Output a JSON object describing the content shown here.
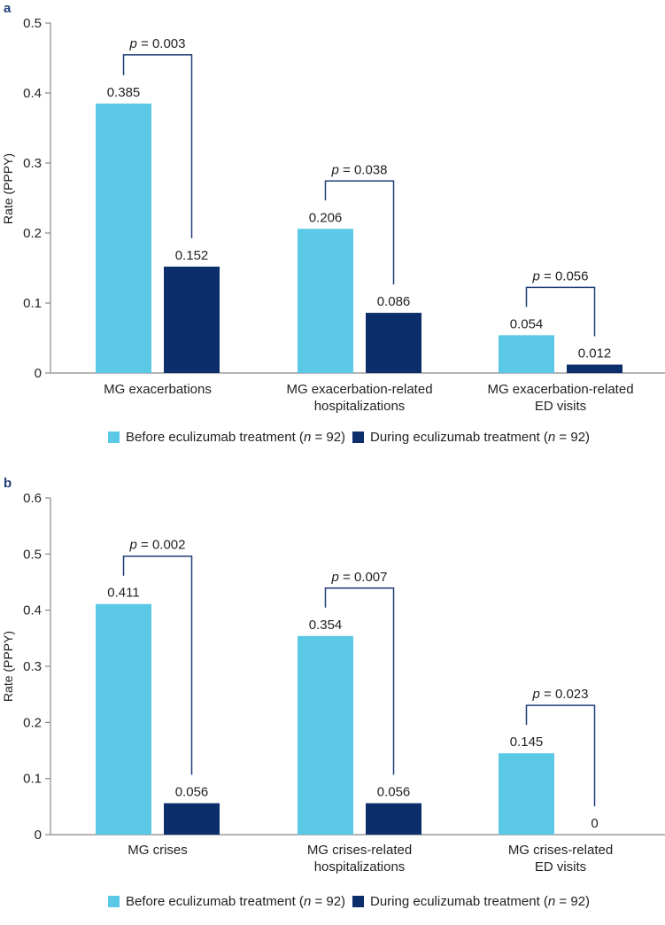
{
  "colors": {
    "before": "#5bc8e6",
    "during": "#0c2f6b",
    "axis": "#888888",
    "text": "#222222",
    "bracket": "#1f3d7a",
    "panel_label": "#1f3d7a"
  },
  "chart_data": [
    {
      "panel_label": "a",
      "type": "bar",
      "ylabel": "Rate (PPPY)",
      "ylim": [
        0,
        0.5
      ],
      "yticks": [
        "0",
        "0.1",
        "0.2",
        "0.3",
        "0.4",
        "0.5"
      ],
      "ytick_values": [
        0,
        0.1,
        0.2,
        0.3,
        0.4,
        0.5
      ],
      "categories": [
        [
          "MG exacerbations"
        ],
        [
          "MG exacerbation-related",
          "hospitalizations"
        ],
        [
          "MG exacerbation-related",
          "ED visits"
        ]
      ],
      "series": [
        {
          "name": "Before eculizumab treatment",
          "n_label": "n",
          "n_value": "= 92)",
          "values": [
            0.385,
            0.206,
            0.054
          ],
          "labels": [
            "0.385",
            "0.206",
            "0.054"
          ]
        },
        {
          "name": "During eculizumab treatment",
          "n_label": "n",
          "n_value": "= 92)",
          "values": [
            0.152,
            0.086,
            0.012
          ],
          "labels": [
            "0.152",
            "0.086",
            "0.012"
          ]
        }
      ],
      "pvalues": [
        "= 0.003",
        "= 0.038",
        "= 0.056"
      ],
      "pvalue_symbol": "p",
      "legend_position": "bottom"
    },
    {
      "panel_label": "b",
      "type": "bar",
      "ylabel": "Rate (PPPY)",
      "ylim": [
        0,
        0.6
      ],
      "yticks": [
        "0",
        "0.1",
        "0.2",
        "0.3",
        "0.4",
        "0.5",
        "0.6"
      ],
      "ytick_values": [
        0,
        0.1,
        0.2,
        0.3,
        0.4,
        0.5,
        0.6
      ],
      "categories": [
        [
          "MG crises"
        ],
        [
          "MG crises-related",
          "hospitalizations"
        ],
        [
          "MG crises-related",
          "ED visits"
        ]
      ],
      "series": [
        {
          "name": "Before eculizumab treatment",
          "n_label": "n",
          "n_value": "= 92)",
          "values": [
            0.411,
            0.354,
            0.145
          ],
          "labels": [
            "0.411",
            "0.354",
            "0.145"
          ]
        },
        {
          "name": "During eculizumab treatment",
          "n_label": "n",
          "n_value": "= 92)",
          "values": [
            0.056,
            0.056,
            0
          ],
          "labels": [
            "0.056",
            "0.056",
            "0"
          ]
        }
      ],
      "pvalues": [
        "= 0.002",
        "= 0.007",
        "= 0.023"
      ],
      "pvalue_symbol": "p",
      "legend_position": "bottom"
    }
  ]
}
